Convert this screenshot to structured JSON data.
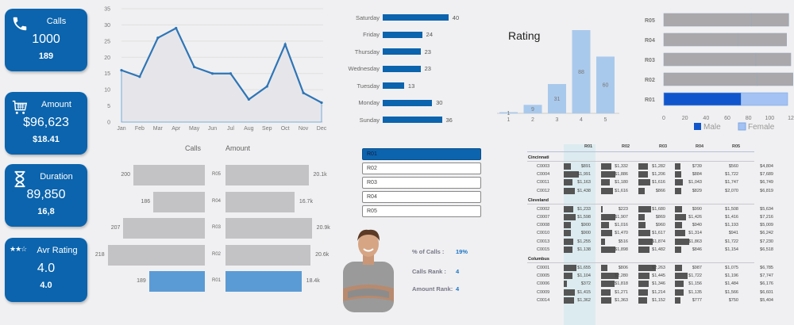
{
  "kpis": [
    {
      "title": "Calls",
      "value": "1000",
      "sub": "189",
      "icon": "phone-icon"
    },
    {
      "title": "Amount",
      "value": "$96,623",
      "sub": "$18.41",
      "icon": "cart-icon"
    },
    {
      "title": "Duration",
      "value": "89,850",
      "sub": "16,8",
      "icon": "hourglass-icon"
    },
    {
      "title": "Avr Rating",
      "value": "4.0",
      "sub": "4.0",
      "icon": "stars-icon",
      "stars": "★★☆"
    }
  ],
  "chart_data": [
    {
      "type": "area",
      "title": "",
      "categories": [
        "Jan",
        "Feb",
        "Mar",
        "Apr",
        "May",
        "Jun",
        "Jul",
        "Aug",
        "Sep",
        "Oct",
        "Nov",
        "Dec"
      ],
      "values": [
        16,
        14,
        26,
        29,
        17,
        15,
        15,
        7,
        11,
        24,
        9,
        6
      ],
      "ylim": [
        0,
        35
      ],
      "yticks": [
        "0",
        "5",
        "10",
        "15",
        "20",
        "25",
        "30",
        "35"
      ],
      "grid": true
    },
    {
      "type": "bar",
      "orientation": "horizontal",
      "categories": [
        "Saturday",
        "Friday",
        "Thursday",
        "Wednesday",
        "Tuesday",
        "Monday",
        "Sunday"
      ],
      "values": [
        40,
        24,
        23,
        23,
        13,
        30,
        36
      ]
    },
    {
      "type": "bar",
      "title": "Rating",
      "categories": [
        "1",
        "2",
        "3",
        "4",
        "5"
      ],
      "values": [
        1,
        9,
        31,
        88,
        60
      ]
    },
    {
      "type": "bar",
      "orientation": "horizontal",
      "stacked": true,
      "categories": [
        "R05",
        "R04",
        "R03",
        "R02",
        "R01"
      ],
      "series": [
        {
          "name": "Male",
          "values": [
            83,
            70,
            87,
            88,
            73
          ]
        },
        {
          "name": "Female",
          "values": [
            35,
            46,
            33,
            34,
            44
          ]
        }
      ],
      "xticks": [
        "0",
        "20",
        "40",
        "60",
        "80",
        "100",
        "12"
      ],
      "legend": [
        "Male",
        "Female"
      ]
    },
    {
      "type": "bar",
      "orientation": "horizontal",
      "title": "Calls",
      "categories": [
        "R05",
        "R04",
        "R03",
        "R02",
        "R01"
      ],
      "values": [
        200,
        186,
        207,
        218,
        189
      ],
      "labels": [
        "200",
        "186",
        "207",
        "218",
        "189"
      ]
    },
    {
      "type": "bar",
      "orientation": "horizontal",
      "title": "Amount",
      "categories": [
        "R05",
        "R04",
        "R03",
        "R02",
        "R01"
      ],
      "values": [
        20.1,
        16.7,
        20.9,
        20.6,
        18.4
      ],
      "labels": [
        "20.1k",
        "16.7k",
        "20.9k",
        "20.6k",
        "18.4k"
      ]
    }
  ],
  "headers": {
    "calls": "Calls",
    "amount": "Amount"
  },
  "slicer": {
    "items": [
      "R01",
      "R02",
      "R03",
      "R04",
      "R05"
    ],
    "selected": "R01"
  },
  "person_stats": [
    {
      "label": "% of Calls :",
      "value": "19%"
    },
    {
      "label": "Calls Rank :",
      "value": "4"
    },
    {
      "label": "Amount Rank:",
      "value": "4"
    }
  ],
  "rating_title": "Rating",
  "legend": {
    "male": "Male",
    "female": "Female"
  },
  "table": {
    "columns": [
      "R01",
      "R02",
      "R03",
      "R04",
      "R05"
    ],
    "groups": [
      {
        "name": "Cincinnati",
        "rows": [
          {
            "id": "C0003",
            "vals": [
              "$891",
              "$1,332",
              "$1,282",
              "$739",
              "$560"
            ],
            "total": "$4,804"
          },
          {
            "id": "C0004",
            "vals": [
              "$1,991",
              "$1,886",
              "$1,206",
              "$884",
              "$1,722"
            ],
            "total": "$7,689"
          },
          {
            "id": "C0011",
            "vals": [
              "$1,163",
              "$1,180",
              "$1,616",
              "$1,043",
              "$1,747"
            ],
            "total": "$6,749"
          },
          {
            "id": "C0012",
            "vals": [
              "$1,438",
              "$1,616",
              "$866",
              "$829",
              "$2,070"
            ],
            "total": "$6,819"
          }
        ]
      },
      {
        "name": "Cleveland",
        "rows": [
          {
            "id": "C0002",
            "vals": [
              "$1,233",
              "$223",
              "$1,680",
              "$990",
              "$1,508"
            ],
            "total": "$5,634"
          },
          {
            "id": "C0007",
            "vals": [
              "$1,598",
              "$1,907",
              "$869",
              "$1,426",
              "$1,416"
            ],
            "total": "$7,216"
          },
          {
            "id": "C0008",
            "vals": [
              "$900",
              "$1,016",
              "$960",
              "$940",
              "$1,193"
            ],
            "total": "$5,009"
          },
          {
            "id": "C0010",
            "vals": [
              "$900",
              "$1,470",
              "$1,617",
              "$1,314",
              "$941"
            ],
            "total": "$6,242"
          },
          {
            "id": "C0013",
            "vals": [
              "$1,255",
              "$516",
              "$1,874",
              "$1,863",
              "$1,722"
            ],
            "total": "$7,230"
          },
          {
            "id": "C0015",
            "vals": [
              "$1,138",
              "$1,898",
              "$1,482",
              "$846",
              "$1,154"
            ],
            "total": "$6,518"
          }
        ]
      },
      {
        "name": "Columbus",
        "rows": [
          {
            "id": "C0001",
            "vals": [
              "$1,655",
              "$806",
              "$2,263",
              "$987",
              "$1,075"
            ],
            "total": "$6,785"
          },
          {
            "id": "C0005",
            "vals": [
              "$1,104",
              "$2,280",
              "$1,445",
              "$1,722",
              "$1,196"
            ],
            "total": "$7,747"
          },
          {
            "id": "C0006",
            "vals": [
              "$372",
              "$1,818",
              "$1,346",
              "$1,156",
              "$1,484"
            ],
            "total": "$6,176"
          },
          {
            "id": "C0009",
            "vals": [
              "$1,415",
              "$1,271",
              "$1,214",
              "$1,135",
              "$1,566"
            ],
            "total": "$6,601"
          },
          {
            "id": "C0014",
            "vals": [
              "$1,362",
              "$1,363",
              "$1,152",
              "$777",
              "$750"
            ],
            "total": "$5,404"
          }
        ]
      }
    ]
  },
  "colors": {
    "accent": "#0b64ad",
    "light_blue": "#a9c9ec",
    "selected_bar": "#5b9bd5",
    "grey_bar": "#c3c2c4",
    "male": "#1155cc",
    "female": "#a4c2f4"
  }
}
